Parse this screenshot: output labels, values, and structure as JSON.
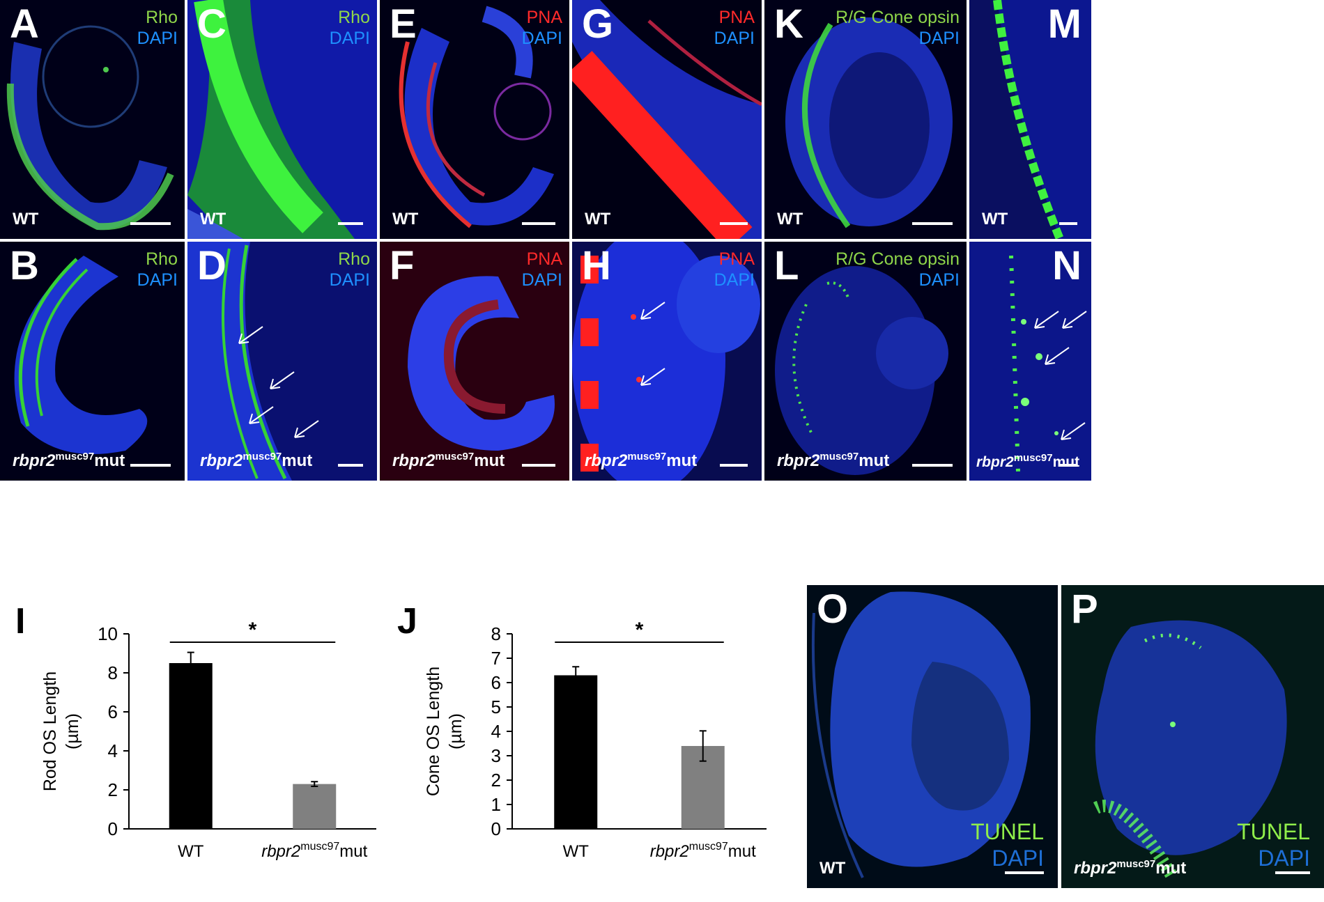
{
  "panels": {
    "A": {
      "letter": "A",
      "stain1": "Rho",
      "stain2": "DAPI",
      "genotype_plain": "WT"
    },
    "B": {
      "letter": "B",
      "stain1": "Rho",
      "stain2": "DAPI",
      "geno_gene": "rbpr2",
      "geno_sup": "musc97",
      "geno_suffix": "mut"
    },
    "C": {
      "letter": "C",
      "stain1": "Rho",
      "stain2": "DAPI",
      "genotype_plain": "WT"
    },
    "D": {
      "letter": "D",
      "stain1": "Rho",
      "stain2": "DAPI",
      "geno_gene": "rbpr2",
      "geno_sup": "musc97",
      "geno_suffix": "mut"
    },
    "E": {
      "letter": "E",
      "stain1": "PNA",
      "stain2": "DAPI",
      "genotype_plain": "WT"
    },
    "F": {
      "letter": "F",
      "stain1": "PNA",
      "stain2": "DAPI",
      "geno_gene": "rbpr2",
      "geno_sup": "musc97",
      "geno_suffix": "mut"
    },
    "G": {
      "letter": "G",
      "stain1": "PNA",
      "stain2": "DAPI",
      "genotype_plain": "WT"
    },
    "H": {
      "letter": "H",
      "stain1": "PNA",
      "stain2": "DAPI",
      "geno_gene": "rbpr2",
      "geno_sup": "musc97",
      "geno_suffix": "mut"
    },
    "K": {
      "letter": "K",
      "stain1": "R/G Cone opsin",
      "stain2": "DAPI",
      "genotype_plain": "WT"
    },
    "L": {
      "letter": "L",
      "stain1": "R/G Cone opsin",
      "stain2": "DAPI",
      "geno_gene": "rbpr2",
      "geno_sup": "musc97",
      "geno_suffix": "mut"
    },
    "M": {
      "letter": "M",
      "genotype_plain": "WT"
    },
    "N": {
      "letter": "N",
      "geno_gene": "rbpr2",
      "geno_sup": "musc97",
      "geno_suffix": "mut"
    },
    "O": {
      "letter": "O",
      "stain1": "TUNEL",
      "stain2": "DAPI",
      "genotype_plain": "WT"
    },
    "P": {
      "letter": "P",
      "stain1": "TUNEL",
      "stain2": "DAPI",
      "geno_gene": "rbpr2",
      "geno_sup": "musc97",
      "geno_suffix": "mut"
    }
  },
  "colors": {
    "dapi": "#1e5fe0",
    "rho": "#3cdc3c",
    "pna": "#ff2a2a",
    "cone": "#46e646",
    "label_green": "#8fd64a",
    "label_red": "#ff2a2a",
    "label_blue": "#1e90ff"
  },
  "chart_data": [
    {
      "letter": "I",
      "type": "bar",
      "categories": [
        "WT",
        "rbpr2"
      ],
      "category_sup": [
        "",
        "musc97"
      ],
      "category_suffix": [
        "",
        "mut"
      ],
      "values": [
        8.5,
        2.3
      ],
      "errors": [
        0.55,
        0.12
      ],
      "bar_colors": [
        "#000000",
        "#808080"
      ],
      "ylabel_line1": "Rod OS Length",
      "ylabel_line2": "(µm)",
      "ylim": [
        0,
        10
      ],
      "yticks": [
        0,
        2,
        4,
        6,
        8,
        10
      ],
      "significance": "*"
    },
    {
      "letter": "J",
      "type": "bar",
      "categories": [
        "WT",
        "rbpr2"
      ],
      "category_sup": [
        "",
        "musc97"
      ],
      "category_suffix": [
        "",
        "mut"
      ],
      "values": [
        6.3,
        3.4
      ],
      "errors": [
        0.35,
        0.62
      ],
      "bar_colors": [
        "#000000",
        "#808080"
      ],
      "ylabel_line1": "Cone  OS Length",
      "ylabel_line2": "(µm)",
      "ylim": [
        0,
        8
      ],
      "yticks": [
        0,
        1,
        2,
        3,
        4,
        5,
        6,
        7,
        8
      ],
      "significance": "*"
    }
  ]
}
